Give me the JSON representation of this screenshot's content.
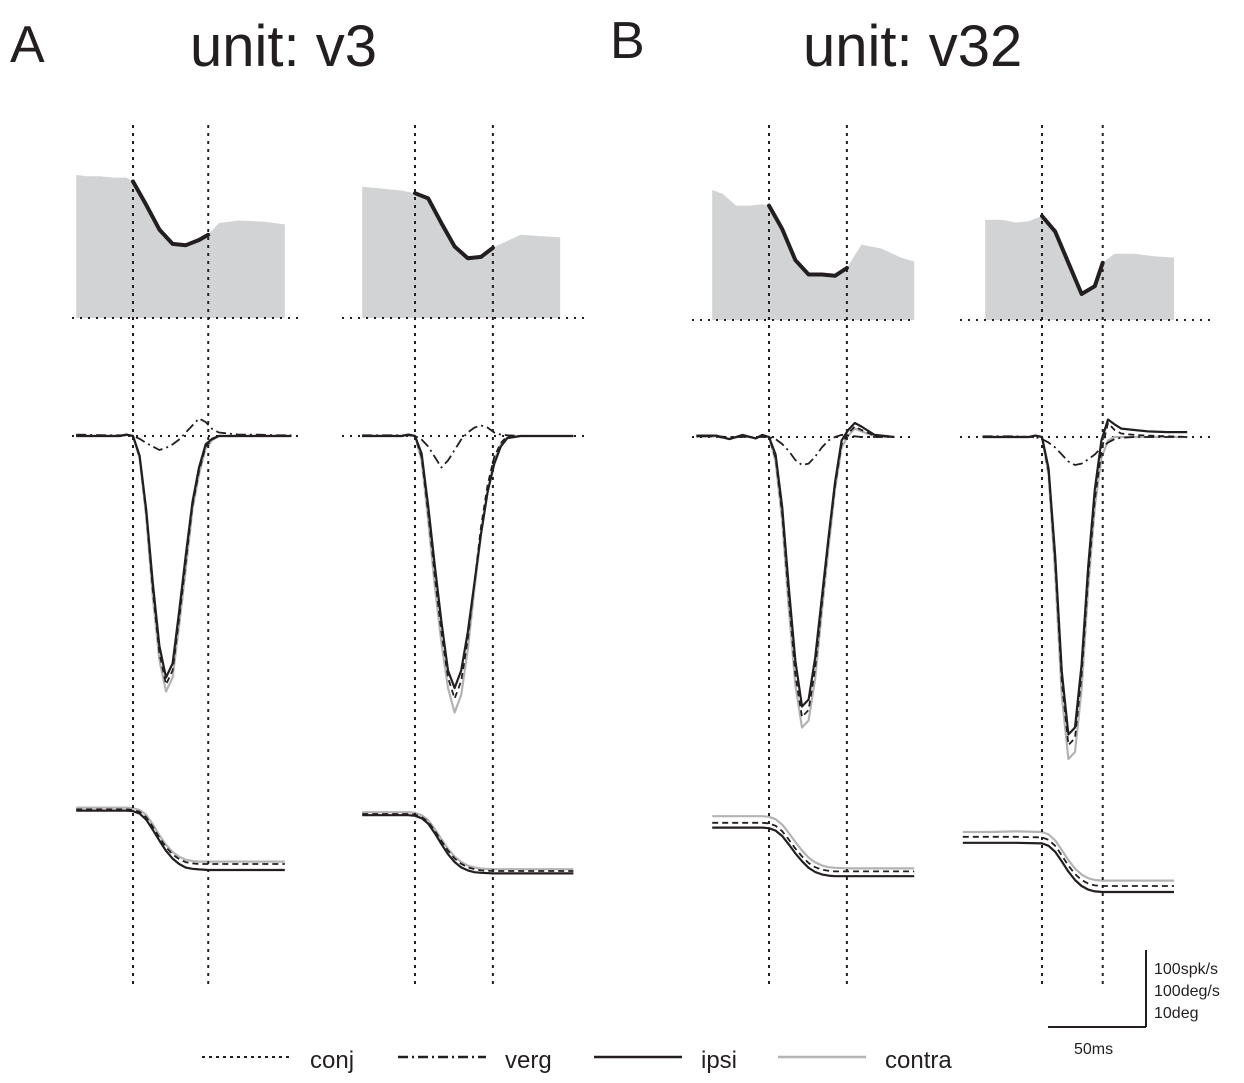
{
  "panels": [
    {
      "letter": "A",
      "title": "unit: v3"
    },
    {
      "letter": "B",
      "title": "unit: v32"
    }
  ],
  "legend": [
    {
      "label": "conj",
      "style": "dotted",
      "color": "#231f20"
    },
    {
      "label": "verg",
      "style": "dashdot",
      "color": "#231f20"
    },
    {
      "label": "ipsi",
      "style": "solid",
      "color": "#231f20"
    },
    {
      "label": "contra",
      "style": "solid",
      "color": "#b3b3b3"
    }
  ],
  "scale_bar": {
    "vertical": [
      "100spk/s",
      "100deg/s",
      "10deg"
    ],
    "horizontal": "50ms"
  },
  "colors": {
    "ink": "#231f20",
    "contra": "#b3b3b3",
    "fill": "#d1d3d4"
  },
  "chart_data": {
    "type": "line",
    "time_unit": "ms",
    "subplots": [
      {
        "panel": "A",
        "saccade_start_ms": 0,
        "saccade_end_ms": 57,
        "firing_rate_spk_s": {
          "x": [
            -43,
            -35,
            -25,
            -15,
            -5,
            0,
            10,
            20,
            30,
            40,
            50,
            57,
            65,
            80,
            100,
            115
          ],
          "y": [
            110,
            109,
            109,
            108,
            108,
            105,
            87,
            68,
            57,
            56,
            60,
            64,
            73,
            75,
            74,
            72
          ]
        },
        "velocity_deg_s": {
          "x": [
            -43,
            -20,
            -10,
            -5,
            0,
            5,
            10,
            15,
            20,
            25,
            30,
            35,
            40,
            45,
            50,
            55,
            60,
            65,
            70,
            80,
            95,
            110,
            120
          ],
          "conj": [
            0,
            0,
            0,
            2,
            0,
            -30,
            -110,
            -220,
            -310,
            -355,
            -335,
            -260,
            -180,
            -100,
            -50,
            -15,
            -5,
            0,
            0,
            0,
            0,
            0,
            0
          ],
          "verg": [
            2,
            1,
            1,
            1,
            0,
            -4,
            -10,
            -15,
            -20,
            -17,
            -12,
            -5,
            5,
            15,
            25,
            20,
            10,
            5,
            4,
            2,
            2,
            1,
            1
          ],
          "ipsi": [
            0,
            0,
            0,
            2,
            0,
            -28,
            -105,
            -210,
            -300,
            -345,
            -325,
            -250,
            -170,
            -95,
            -45,
            -12,
            -4,
            0,
            0,
            0,
            0,
            0,
            0
          ],
          "contra": [
            0,
            0,
            0,
            2,
            0,
            -32,
            -115,
            -230,
            -320,
            -365,
            -345,
            -270,
            -190,
            -105,
            -55,
            -18,
            -6,
            0,
            0,
            0,
            0,
            0,
            0
          ]
        },
        "position_deg": {
          "x": [
            -43,
            -20,
            -5,
            0,
            5,
            10,
            15,
            20,
            25,
            30,
            35,
            40,
            45,
            50,
            57,
            65,
            80,
            100,
            115
          ],
          "conj": [
            0.1,
            0.1,
            0.1,
            0,
            -0.3,
            -1.2,
            -2.8,
            -4.6,
            -6.2,
            -7.4,
            -8.2,
            -8.7,
            -8.9,
            -9.0,
            -9.0,
            -9.0,
            -9.0,
            -9.0,
            -9.0
          ],
          "ipsi": [
            -0.1,
            -0.1,
            -0.1,
            -0.2,
            -0.6,
            -1.6,
            -3.3,
            -5.1,
            -6.8,
            -8.1,
            -9.0,
            -9.6,
            -9.8,
            -9.9,
            -10.0,
            -10.0,
            -10.0,
            -10.0,
            -10.0
          ],
          "contra": [
            0.4,
            0.4,
            0.4,
            0.3,
            0,
            -0.8,
            -2.4,
            -4.2,
            -5.8,
            -7.0,
            -7.8,
            -8.3,
            -8.5,
            -8.6,
            -8.6,
            -8.6,
            -8.6,
            -8.6,
            -8.6
          ]
        }
      },
      {
        "panel": "A",
        "saccade_start_ms": 0,
        "saccade_end_ms": 59,
        "firing_rate_spk_s": {
          "x": [
            -40,
            -30,
            -20,
            -10,
            0,
            10,
            20,
            30,
            40,
            50,
            59,
            65,
            80,
            95,
            110
          ],
          "y": [
            101,
            100,
            99,
            98,
            96,
            92,
            73,
            55,
            46,
            47,
            54,
            57,
            64,
            63,
            62
          ]
        },
        "velocity_deg_s": {
          "x": [
            -40,
            -20,
            -10,
            -5,
            0,
            5,
            10,
            15,
            20,
            25,
            30,
            35,
            40,
            45,
            50,
            55,
            60,
            65,
            70,
            80,
            95,
            110,
            120
          ],
          "conj": [
            0,
            0,
            0,
            2,
            0,
            -30,
            -110,
            -200,
            -280,
            -345,
            -375,
            -350,
            -290,
            -210,
            -130,
            -70,
            -30,
            -10,
            0,
            0,
            0,
            0,
            0
          ],
          "verg": [
            1,
            1,
            1,
            1,
            0,
            -5,
            -15,
            -30,
            -45,
            -35,
            -20,
            -5,
            5,
            12,
            15,
            12,
            5,
            2,
            1,
            0,
            0,
            0,
            0
          ],
          "ipsi": [
            0,
            0,
            0,
            2,
            0,
            -25,
            -100,
            -185,
            -265,
            -335,
            -360,
            -335,
            -280,
            -210,
            -140,
            -80,
            -40,
            -15,
            -3,
            0,
            0,
            0,
            0
          ],
          "contra": [
            0,
            0,
            0,
            2,
            0,
            -35,
            -120,
            -215,
            -295,
            -360,
            -395,
            -370,
            -305,
            -220,
            -140,
            -80,
            -35,
            -12,
            -2,
            0,
            0,
            0,
            0
          ]
        },
        "position_deg": {
          "x": [
            -40,
            -20,
            -5,
            0,
            5,
            10,
            15,
            20,
            25,
            30,
            35,
            40,
            45,
            50,
            59,
            70,
            90,
            110,
            120
          ],
          "conj": [
            0,
            0,
            0,
            -0.1,
            -0.5,
            -1.3,
            -2.8,
            -4.5,
            -6.1,
            -7.4,
            -8.3,
            -8.9,
            -9.2,
            -9.4,
            -9.5,
            -9.5,
            -9.5,
            -9.5,
            -9.5
          ],
          "ipsi": [
            -0.2,
            -0.2,
            -0.2,
            -0.3,
            -0.7,
            -1.6,
            -3.2,
            -5.0,
            -6.7,
            -8.0,
            -8.9,
            -9.4,
            -9.7,
            -9.8,
            -9.9,
            -9.9,
            -9.9,
            -9.9,
            -9.9
          ],
          "contra": [
            0.3,
            0.3,
            0.3,
            0.2,
            -0.2,
            -1.0,
            -2.5,
            -4.2,
            -5.8,
            -7.1,
            -8.0,
            -8.6,
            -8.9,
            -9.1,
            -9.2,
            -9.2,
            -9.2,
            -9.2,
            -9.2
          ]
        }
      },
      {
        "panel": "B",
        "saccade_start_ms": 0,
        "saccade_end_ms": 59,
        "firing_rate_spk_s": {
          "x": [
            -43,
            -35,
            -25,
            -15,
            -5,
            0,
            10,
            20,
            30,
            40,
            50,
            59,
            70,
            85,
            100,
            110
          ],
          "y": [
            100,
            97,
            88,
            88,
            89,
            88,
            70,
            46,
            35,
            35,
            34,
            40,
            58,
            55,
            48,
            45
          ]
        },
        "velocity_deg_s": {
          "x": [
            -55,
            -40,
            -30,
            -20,
            -10,
            -5,
            0,
            5,
            10,
            15,
            20,
            25,
            30,
            35,
            40,
            45,
            50,
            55,
            60,
            65,
            70,
            80,
            95
          ],
          "conj": [
            1,
            1,
            -3,
            2,
            -2,
            2,
            0,
            -30,
            -110,
            -230,
            -340,
            -400,
            -390,
            -330,
            -240,
            -150,
            -70,
            -10,
            5,
            15,
            10,
            2,
            0
          ],
          "verg": [
            1,
            1,
            0,
            0,
            0,
            0,
            0,
            -3,
            -10,
            -20,
            -33,
            -40,
            -38,
            -28,
            -15,
            -5,
            0,
            3,
            2,
            1,
            0,
            0,
            0
          ],
          "ipsi": [
            2,
            2,
            -3,
            3,
            -2,
            3,
            0,
            -25,
            -100,
            -215,
            -320,
            -385,
            -375,
            -315,
            -230,
            -145,
            -65,
            -5,
            10,
            20,
            15,
            3,
            0
          ],
          "contra": [
            1,
            1,
            -3,
            2,
            -2,
            2,
            0,
            -35,
            -120,
            -245,
            -355,
            -415,
            -405,
            -345,
            -250,
            -160,
            -75,
            -15,
            2,
            12,
            8,
            1,
            0
          ]
        },
        "position_deg": {
          "x": [
            -43,
            -20,
            -5,
            0,
            5,
            10,
            15,
            20,
            25,
            30,
            35,
            40,
            45,
            50,
            59,
            70,
            80,
            90,
            110
          ],
          "conj": [
            -0.8,
            -0.8,
            -0.8,
            -0.9,
            -1.3,
            -2.2,
            -3.6,
            -5.1,
            -6.4,
            -7.5,
            -8.2,
            -8.6,
            -8.8,
            -8.9,
            -8.9,
            -8.9,
            -8.9,
            -8.9,
            -8.9
          ],
          "ipsi": [
            -1.6,
            -1.6,
            -1.6,
            -1.7,
            -2.1,
            -3.0,
            -4.4,
            -5.9,
            -7.2,
            -8.3,
            -9.0,
            -9.4,
            -9.6,
            -9.7,
            -9.7,
            -9.7,
            -9.7,
            -9.7,
            -9.7
          ],
          "contra": [
            0.3,
            0.3,
            0.3,
            0.2,
            -0.2,
            -1.1,
            -2.5,
            -4.0,
            -5.4,
            -6.6,
            -7.4,
            -7.9,
            -8.2,
            -8.3,
            -8.4,
            -8.4,
            -8.4,
            -8.4,
            -8.4
          ]
        }
      },
      {
        "panel": "B",
        "saccade_start_ms": 0,
        "saccade_end_ms": 46,
        "firing_rate_spk_s": {
          "x": [
            -43,
            -30,
            -20,
            -10,
            0,
            10,
            20,
            30,
            40,
            46,
            55,
            70,
            85,
            100
          ],
          "y": [
            77,
            77,
            75,
            76,
            80,
            68,
            44,
            20,
            26,
            44,
            51,
            51,
            49,
            48
          ]
        },
        "velocity_deg_s": {
          "x": [
            -45,
            -30,
            -20,
            -10,
            -5,
            0,
            5,
            10,
            15,
            20,
            25,
            30,
            35,
            40,
            45,
            50,
            55,
            60,
            70,
            80,
            95,
            110
          ],
          "conj": [
            0,
            0,
            0,
            0,
            2,
            0,
            -50,
            -180,
            -350,
            -440,
            -430,
            -340,
            -200,
            -90,
            -20,
            20,
            10,
            5,
            3,
            2,
            1,
            0
          ],
          "verg": [
            1,
            1,
            1,
            0,
            0,
            -3,
            -8,
            -15,
            -25,
            -35,
            -40,
            -38,
            -32,
            -25,
            -15,
            -8,
            -3,
            -1,
            0,
            0,
            0,
            0
          ],
          "ipsi": [
            0,
            0,
            0,
            0,
            2,
            0,
            -45,
            -170,
            -335,
            -425,
            -415,
            -325,
            -185,
            -75,
            -5,
            25,
            18,
            12,
            10,
            8,
            7,
            7
          ],
          "contra": [
            0,
            0,
            0,
            0,
            2,
            0,
            -55,
            -195,
            -370,
            -460,
            -450,
            -360,
            -215,
            -100,
            -30,
            -5,
            0,
            0,
            0,
            0,
            0,
            0
          ]
        },
        "position_deg": {
          "x": [
            -60,
            -40,
            -20,
            0,
            5,
            10,
            15,
            20,
            25,
            30,
            35,
            40,
            46,
            55,
            70,
            85,
            100
          ],
          "conj": [
            0.2,
            0.2,
            0.2,
            0.1,
            -0.3,
            -1.3,
            -2.9,
            -4.6,
            -6.0,
            -7.0,
            -7.6,
            -7.9,
            -8.0,
            -8.0,
            -8.0,
            -8.0,
            -8.0
          ],
          "ipsi": [
            -0.8,
            -0.8,
            -0.8,
            -0.9,
            -1.3,
            -2.3,
            -3.9,
            -5.6,
            -7.0,
            -8.0,
            -8.6,
            -8.9,
            -9.0,
            -9.0,
            -9.0,
            -9.0,
            -9.0
          ],
          "contra": [
            1.0,
            1.0,
            1.1,
            1.0,
            0.6,
            -0.4,
            -2.0,
            -3.7,
            -5.1,
            -6.1,
            -6.7,
            -7.0,
            -7.1,
            -7.1,
            -7.1,
            -7.1,
            -7.1
          ]
        }
      }
    ]
  }
}
